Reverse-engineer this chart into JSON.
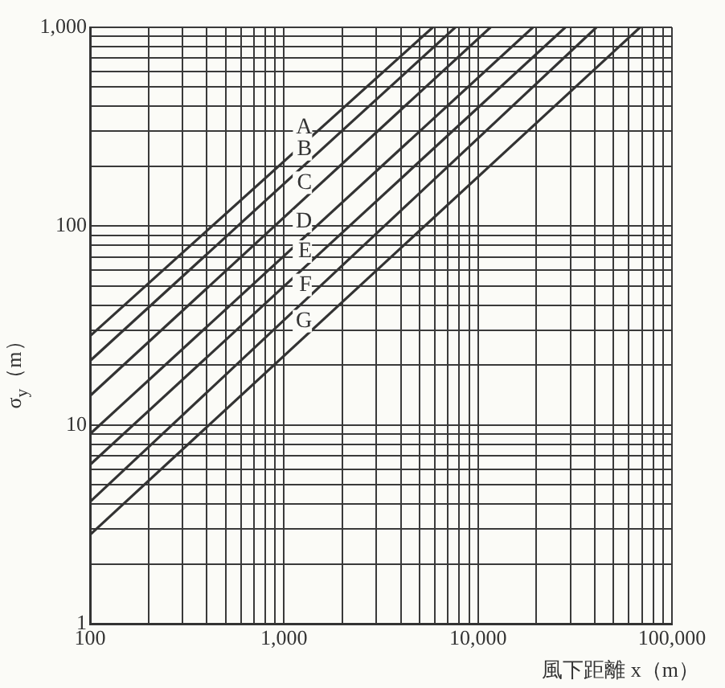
{
  "chart_data": {
    "type": "line",
    "xlabel": "風下距離 x（m）",
    "ylabel": "σ$_{y}$（m）",
    "xlim": [
      100,
      100000
    ],
    "ylim": [
      1,
      1000
    ],
    "log": "xy",
    "grid": true,
    "legend": false,
    "marker": "none",
    "line_style": "solid",
    "xticks": [
      {
        "value": 100,
        "label": "100"
      },
      {
        "value": 200,
        "label": null
      },
      {
        "value": 300,
        "label": null
      },
      {
        "value": 400,
        "label": null
      },
      {
        "value": 500,
        "label": null
      },
      {
        "value": 600,
        "label": null
      },
      {
        "value": 700,
        "label": null
      },
      {
        "value": 800,
        "label": null
      },
      {
        "value": 900,
        "label": null
      },
      {
        "value": 1000,
        "label": "1,000"
      },
      {
        "value": 2000,
        "label": null
      },
      {
        "value": 3000,
        "label": null
      },
      {
        "value": 4000,
        "label": null
      },
      {
        "value": 5000,
        "label": null
      },
      {
        "value": 6000,
        "label": null
      },
      {
        "value": 7000,
        "label": null
      },
      {
        "value": 8000,
        "label": null
      },
      {
        "value": 9000,
        "label": null
      },
      {
        "value": 10000,
        "label": "10,000"
      },
      {
        "value": 20000,
        "label": null
      },
      {
        "value": 30000,
        "label": null
      },
      {
        "value": 40000,
        "label": null
      },
      {
        "value": 50000,
        "label": null
      },
      {
        "value": 60000,
        "label": null
      },
      {
        "value": 70000,
        "label": null
      },
      {
        "value": 80000,
        "label": null
      },
      {
        "value": 90000,
        "label": null
      },
      {
        "value": 100000,
        "label": "100,000"
      }
    ],
    "yticks": [
      {
        "value": 1,
        "label": "1"
      },
      {
        "value": 2,
        "label": null
      },
      {
        "value": 3,
        "label": null
      },
      {
        "value": 4,
        "label": null
      },
      {
        "value": 5,
        "label": null
      },
      {
        "value": 6,
        "label": null
      },
      {
        "value": 7,
        "label": null
      },
      {
        "value": 8,
        "label": null
      },
      {
        "value": 9,
        "label": null
      },
      {
        "value": 10,
        "label": "10"
      },
      {
        "value": 20,
        "label": null
      },
      {
        "value": 30,
        "label": null
      },
      {
        "value": 40,
        "label": null
      },
      {
        "value": 50,
        "label": null
      },
      {
        "value": 60,
        "label": null
      },
      {
        "value": 70,
        "label": null
      },
      {
        "value": 80,
        "label": null
      },
      {
        "value": 90,
        "label": null
      },
      {
        "value": 100,
        "label": "100"
      },
      {
        "value": 200,
        "label": null
      },
      {
        "value": 300,
        "label": null
      },
      {
        "value": 400,
        "label": null
      },
      {
        "value": 500,
        "label": null
      },
      {
        "value": 600,
        "label": null
      },
      {
        "value": 700,
        "label": null
      },
      {
        "value": 800,
        "label": null
      },
      {
        "value": 900,
        "label": null
      },
      {
        "value": 1000,
        "label": "1,000"
      }
    ],
    "series": [
      {
        "name": "A",
        "color": "#333333",
        "x": [
          100,
          5850
        ],
        "values": [
          28,
          1000
        ]
      },
      {
        "name": "B",
        "color": "#333333",
        "x": [
          100,
          7640
        ],
        "values": [
          21,
          1000
        ]
      },
      {
        "name": "C",
        "color": "#333333",
        "x": [
          100,
          11600
        ],
        "values": [
          14,
          1000
        ]
      },
      {
        "name": "D",
        "color": "#333333",
        "x": [
          100,
          19200
        ],
        "values": [
          9,
          1000
        ]
      },
      {
        "name": "E",
        "color": "#333333",
        "x": [
          100,
          28200
        ],
        "values": [
          6.3,
          1000
        ]
      },
      {
        "name": "F",
        "color": "#333333",
        "x": [
          100,
          40800
        ],
        "values": [
          4.1,
          1000
        ]
      },
      {
        "name": "G",
        "color": "#333333",
        "x": [
          100,
          68500
        ],
        "values": [
          2.8,
          1000
        ]
      }
    ]
  }
}
